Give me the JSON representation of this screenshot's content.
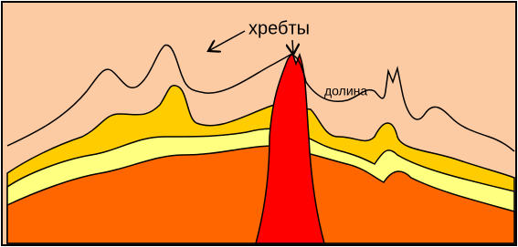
{
  "labels": {
    "ridges": "хребты",
    "valley": "долина"
  }
}
